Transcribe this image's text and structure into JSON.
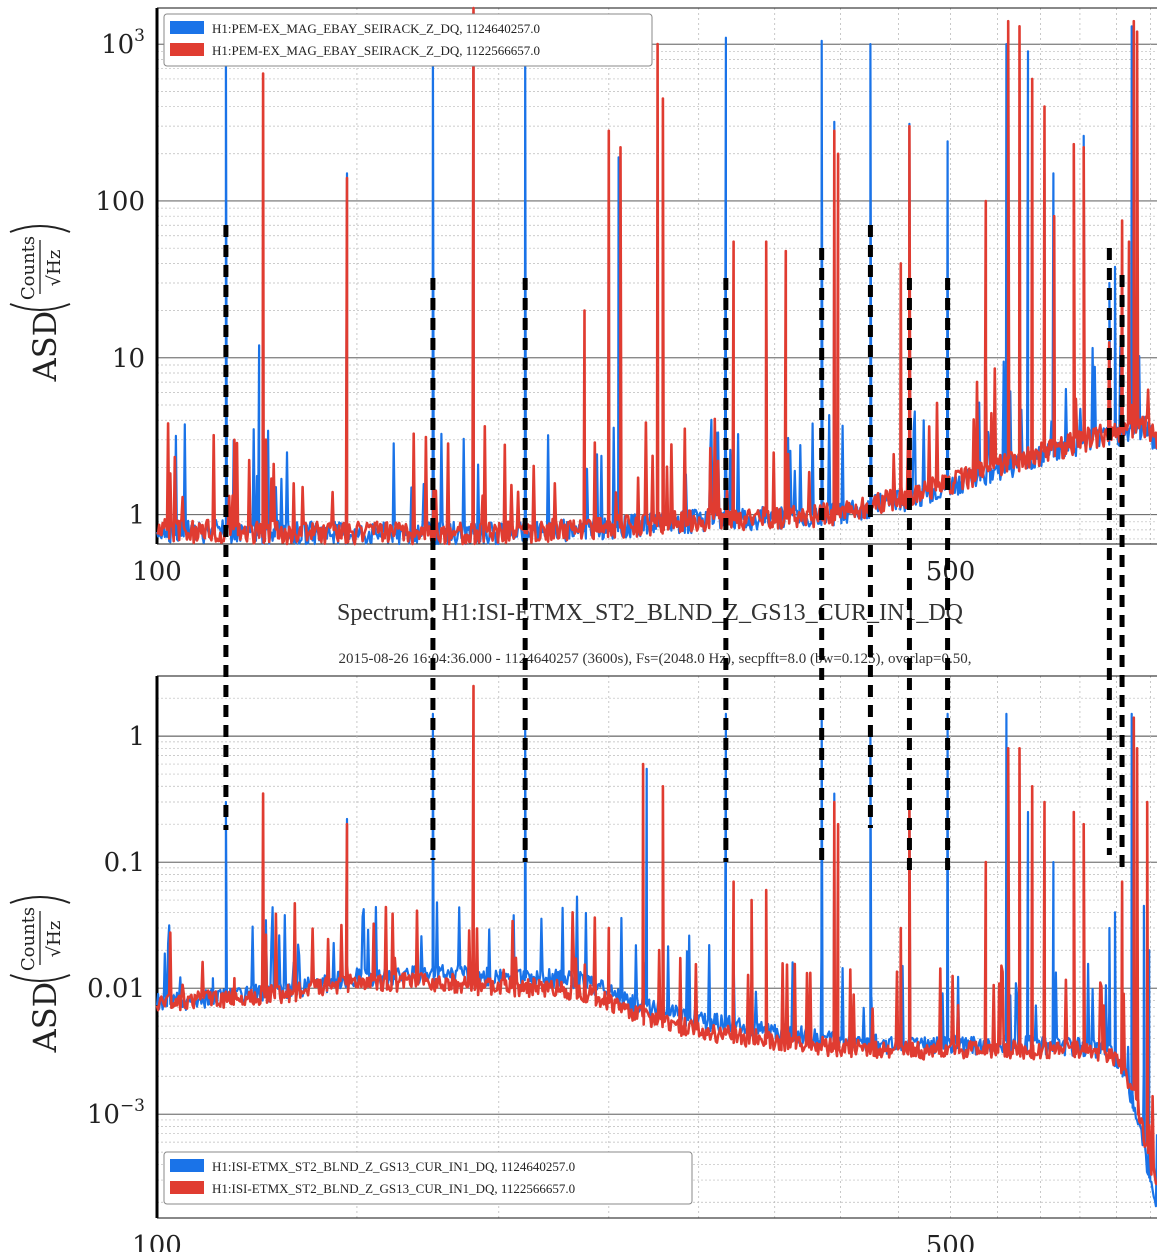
{
  "colors": {
    "blue": "#1a73e8",
    "red": "#e03c31",
    "grid_major": "#444444",
    "grid_minor": "#bbbbbb",
    "marker": "#000000"
  },
  "chart_data": [
    {
      "type": "line",
      "panel": "top",
      "xscale": "log",
      "yscale": "log",
      "xlim": [
        100,
        760
      ],
      "ylim": [
        0.65,
        1700
      ],
      "x_tick_labels": [
        {
          "x": 100,
          "label": "100"
        },
        {
          "x": 500,
          "label": "500"
        }
      ],
      "y_tick_labels": [
        {
          "y": 1,
          "label": "1"
        },
        {
          "y": 10,
          "label": "10"
        },
        {
          "y": 100,
          "label": "100"
        },
        {
          "y": 1000,
          "label": "10",
          "sup": "3"
        }
      ],
      "ylabel": {
        "prefix": "ASD",
        "num": "Counts",
        "den": "√Hz"
      },
      "grid": true,
      "legend_position": "top-left",
      "series": [
        {
          "name": "H1:PEM-EX_MAG_EBAY_SEIRACK_Z_DQ, 1124640257.0",
          "color": "blue",
          "baseline": [
            [
              100,
              0.78
            ],
            [
              150,
              0.75
            ],
            [
              200,
              0.75
            ],
            [
              250,
              0.82
            ],
            [
              300,
              0.9
            ],
            [
              400,
              1.0
            ],
            [
              450,
              1.2
            ],
            [
              500,
              1.5
            ],
            [
              550,
              1.9
            ],
            [
              600,
              2.3
            ],
            [
              650,
              2.8
            ],
            [
              700,
              3.2
            ],
            [
              740,
              3.6
            ],
            [
              760,
              2.8
            ]
          ],
          "peaks": [
            [
              115,
              1100
            ],
            [
              123,
              12
            ],
            [
              147,
              150
            ],
            [
              175,
              1100
            ],
            [
              190,
              1600
            ],
            [
              211,
              1100
            ],
            [
              250,
              260
            ],
            [
              255,
              190
            ],
            [
              317,
              1100
            ],
            [
              344,
              50
            ],
            [
              385,
              1050
            ],
            [
              395,
              320
            ],
            [
              425,
              1000
            ],
            [
              460,
              310
            ],
            [
              497,
              240
            ],
            [
              560,
              1000
            ],
            [
              585,
              900
            ],
            [
              605,
              150
            ],
            [
              616,
              150
            ],
            [
              655,
              260
            ],
            [
              690,
              30
            ],
            [
              698,
              38
            ],
            [
              708,
              52
            ],
            [
              722,
              1300
            ]
          ]
        },
        {
          "name": "H1:PEM-EX_MAG_EBAY_SEIRACK_Z_DQ, 1122566657.0",
          "color": "red",
          "baseline": [
            [
              100,
              0.78
            ],
            [
              150,
              0.75
            ],
            [
              200,
              0.75
            ],
            [
              250,
              0.82
            ],
            [
              300,
              0.9
            ],
            [
              400,
              1.0
            ],
            [
              450,
              1.25
            ],
            [
              500,
              1.55
            ],
            [
              550,
              2.0
            ],
            [
              600,
              2.4
            ],
            [
              650,
              2.9
            ],
            [
              700,
              3.3
            ],
            [
              740,
              3.7
            ],
            [
              760,
              2.9
            ]
          ],
          "peaks": [
            [
              117,
              3
            ],
            [
              124,
              650
            ],
            [
              147,
              140
            ],
            [
              190,
              1700
            ],
            [
              238,
              20
            ],
            [
              250,
              280
            ],
            [
              256,
              220
            ],
            [
              276,
              1000
            ],
            [
              279,
              450
            ],
            [
              322,
              55
            ],
            [
              344,
              55
            ],
            [
              358,
              48
            ],
            [
              395,
              280
            ],
            [
              398,
              200
            ],
            [
              452,
              40
            ],
            [
              460,
              300
            ],
            [
              537,
              100
            ],
            [
              562,
              1400
            ],
            [
              575,
              1300
            ],
            [
              590,
              600
            ],
            [
              605,
              400
            ],
            [
              617,
              80
            ],
            [
              642,
              230
            ],
            [
              655,
              220
            ],
            [
              708,
              75
            ],
            [
              718,
              55
            ],
            [
              725,
              1400
            ],
            [
              730,
              1200
            ]
          ]
        }
      ]
    },
    {
      "type": "line",
      "panel": "bottom",
      "title": "Spectrum: H1:ISI-ETMX_ST2_BLND_Z_GS13_CUR_IN1_DQ",
      "subtitle": "2015-08-26 16:04:36.000 - 1124640257 (3600s), Fs=(2048.0 Hz), secpfft=8.0 (bw=0.125), overlap=0.50,",
      "xscale": "log",
      "yscale": "log",
      "xlim": [
        100,
        760
      ],
      "ylim": [
        0.00015,
        3
      ],
      "x_tick_labels": [
        {
          "x": 100,
          "label": "100"
        },
        {
          "x": 500,
          "label": "500"
        }
      ],
      "y_tick_labels": [
        {
          "y": 0.001,
          "label": "10",
          "sup": "−3"
        },
        {
          "y": 0.01,
          "label": "0.01"
        },
        {
          "y": 0.1,
          "label": "0.1"
        },
        {
          "y": 1,
          "label": "1"
        }
      ],
      "ylabel": {
        "prefix": "ASD",
        "num": "Counts",
        "den": "√Hz"
      },
      "grid": true,
      "legend_position": "bottom-left",
      "series": [
        {
          "name": "H1:ISI-ETMX_ST2_BLND_Z_GS13_CUR_IN1_DQ, 1124640257.0",
          "color": "blue",
          "baseline": [
            [
              100,
              0.0075
            ],
            [
              130,
              0.0095
            ],
            [
              150,
              0.012
            ],
            [
              180,
              0.013
            ],
            [
              200,
              0.012
            ],
            [
              220,
              0.012
            ],
            [
              240,
              0.011
            ],
            [
              260,
              0.0075
            ],
            [
              300,
              0.0055
            ],
            [
              350,
              0.0045
            ],
            [
              400,
              0.0037
            ],
            [
              450,
              0.0035
            ],
            [
              500,
              0.0035
            ],
            [
              550,
              0.0035
            ],
            [
              600,
              0.0035
            ],
            [
              650,
              0.0034
            ],
            [
              690,
              0.0032
            ],
            [
              710,
              0.0022
            ],
            [
              730,
              0.0009
            ],
            [
              750,
              0.0003
            ],
            [
              760,
              0.0002
            ]
          ],
          "peaks": [
            [
              112,
              0.012
            ],
            [
              115,
              0.3
            ],
            [
              147,
              0.22
            ],
            [
              175,
              1.5
            ],
            [
              211,
              1.2
            ],
            [
              270,
              0.55
            ],
            [
              317,
              1.5
            ],
            [
              385,
              1.5
            ],
            [
              395,
              0.35
            ],
            [
              425,
              1.2
            ],
            [
              460,
              0.3
            ],
            [
              497,
              1.5
            ],
            [
              560,
              1.5
            ],
            [
              585,
              0.25
            ],
            [
              605,
              0.13
            ],
            [
              616,
              0.1
            ],
            [
              655,
              0.1
            ],
            [
              690,
              0.03
            ],
            [
              698,
              0.04
            ],
            [
              708,
              0.05
            ],
            [
              722,
              1.5
            ],
            [
              740,
              0.045
            ],
            [
              748,
              0.02
            ]
          ]
        },
        {
          "name": "H1:ISI-ETMX_ST2_BLND_Z_GS13_CUR_IN1_DQ, 1122566657.0",
          "color": "red",
          "baseline": [
            [
              100,
              0.0075
            ],
            [
              130,
              0.009
            ],
            [
              150,
              0.011
            ],
            [
              180,
              0.011
            ],
            [
              200,
              0.01
            ],
            [
              220,
              0.01
            ],
            [
              240,
              0.009
            ],
            [
              260,
              0.0065
            ],
            [
              300,
              0.0045
            ],
            [
              350,
              0.0038
            ],
            [
              400,
              0.0033
            ],
            [
              450,
              0.0032
            ],
            [
              500,
              0.0032
            ],
            [
              550,
              0.0032
            ],
            [
              600,
              0.0032
            ],
            [
              650,
              0.0032
            ],
            [
              690,
              0.003
            ],
            [
              710,
              0.0024
            ],
            [
              730,
              0.0012
            ],
            [
              750,
              0.0004
            ],
            [
              760,
              0.00025
            ]
          ],
          "peaks": [
            [
              117,
              0.012
            ],
            [
              124,
              0.35
            ],
            [
              147,
              0.2
            ],
            [
              190,
              2.5
            ],
            [
              250,
              0.03
            ],
            [
              268,
              0.6
            ],
            [
              279,
              0.4
            ],
            [
              322,
              0.07
            ],
            [
              334,
              0.05
            ],
            [
              344,
              0.06
            ],
            [
              395,
              0.3
            ],
            [
              398,
              0.2
            ],
            [
              452,
              0.03
            ],
            [
              460,
              0.3
            ],
            [
              537,
              0.1
            ],
            [
              562,
              0.8
            ],
            [
              575,
              0.8
            ],
            [
              590,
              0.4
            ],
            [
              605,
              0.3
            ],
            [
              642,
              0.25
            ],
            [
              655,
              0.2
            ],
            [
              708,
              0.07
            ],
            [
              725,
              1.4
            ],
            [
              730,
              0.8
            ],
            [
              745,
              0.3
            ]
          ]
        }
      ]
    }
  ],
  "marker_lines": [
    {
      "x": 115
    },
    {
      "x": 175
    },
    {
      "x": 211
    },
    {
      "x": 317
    },
    {
      "x": 385
    },
    {
      "x": 425
    },
    {
      "x": 460
    },
    {
      "x": 497
    },
    {
      "x": 690
    },
    {
      "x": 708
    }
  ]
}
